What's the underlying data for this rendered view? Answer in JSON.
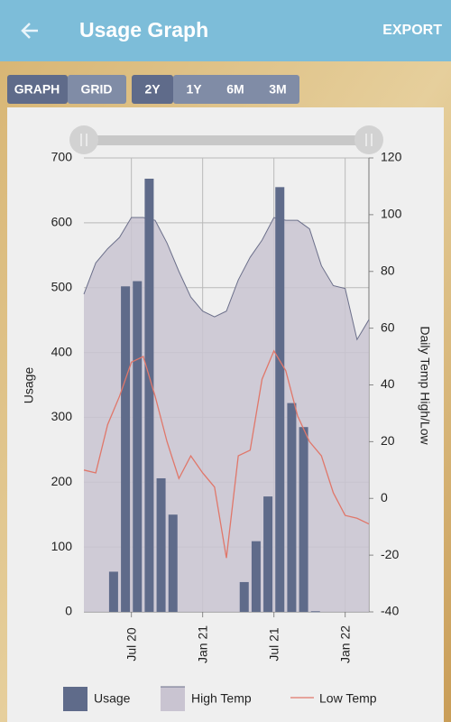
{
  "ui": {
    "title": "Usage Graph",
    "action": "EXPORT",
    "view_toggle": [
      "GRAPH",
      "GRID"
    ],
    "range_toggle": [
      "2Y",
      "1Y",
      "6M",
      "3M"
    ]
  },
  "chart_data": {
    "type": "bar-area-line",
    "xlim": [
      "2020-03",
      "2022-03"
    ],
    "xticks": [
      {
        "value": "2020-07",
        "label": "Jul 20"
      },
      {
        "value": "2021-01",
        "label": "Jan 21"
      },
      {
        "value": "2021-07",
        "label": "Jul 21"
      },
      {
        "value": "2022-01",
        "label": "Jan 22"
      }
    ],
    "ylabel": "Usage",
    "ylim": [
      0,
      700
    ],
    "yticks": [
      0,
      100,
      200,
      300,
      400,
      500,
      600,
      700
    ],
    "y2label": "Daily Temp High/Low",
    "y2lim": [
      -40,
      120
    ],
    "y2ticks": [
      -40,
      -20,
      0,
      20,
      40,
      60,
      80,
      100,
      120
    ],
    "grid": true,
    "series": [
      {
        "name": "Usage",
        "kind": "bar",
        "color": "#5f6b8a",
        "x": [
          "2020-05",
          "2020-06",
          "2020-07",
          "2020-08",
          "2020-09",
          "2020-10",
          "2021-04",
          "2021-05",
          "2021-06",
          "2021-07",
          "2021-08",
          "2021-09",
          "2021-10"
        ],
        "values": [
          62,
          502,
          510,
          668,
          206,
          150,
          46,
          109,
          178,
          655,
          322,
          285,
          1
        ]
      },
      {
        "name": "High Temp",
        "kind": "area",
        "color": "#c9c4d1",
        "axis": "y2",
        "x": [
          "2020-03",
          "2020-04",
          "2020-05",
          "2020-06",
          "2020-07",
          "2020-08",
          "2020-09",
          "2020-10",
          "2020-11",
          "2020-12",
          "2021-01",
          "2021-02",
          "2021-03",
          "2021-04",
          "2021-05",
          "2021-06",
          "2021-07",
          "2021-08",
          "2021-09",
          "2021-10",
          "2021-11",
          "2021-12",
          "2022-01",
          "2022-02",
          "2022-03"
        ],
        "values": [
          72,
          83,
          88,
          92,
          99,
          99,
          98,
          90,
          80,
          71,
          66,
          64,
          66,
          77,
          85,
          91,
          99,
          98,
          98,
          95,
          82,
          75,
          74,
          56,
          63
        ]
      },
      {
        "name": "Low Temp",
        "kind": "line",
        "color": "#e0776a",
        "axis": "y2",
        "x": [
          "2020-03",
          "2020-04",
          "2020-05",
          "2020-06",
          "2020-07",
          "2020-08",
          "2020-09",
          "2020-10",
          "2020-11",
          "2020-12",
          "2021-01",
          "2021-02",
          "2021-03",
          "2021-04",
          "2021-05",
          "2021-06",
          "2021-07",
          "2021-08",
          "2021-09",
          "2021-10",
          "2021-11",
          "2021-12",
          "2022-01",
          "2022-02",
          "2022-03"
        ],
        "values": [
          10,
          9,
          26,
          36,
          48,
          50,
          36,
          20,
          7,
          15,
          9,
          4,
          -21,
          15,
          17,
          42,
          52,
          45,
          29,
          20,
          15,
          2,
          -6,
          -7,
          -9
        ]
      }
    ]
  }
}
